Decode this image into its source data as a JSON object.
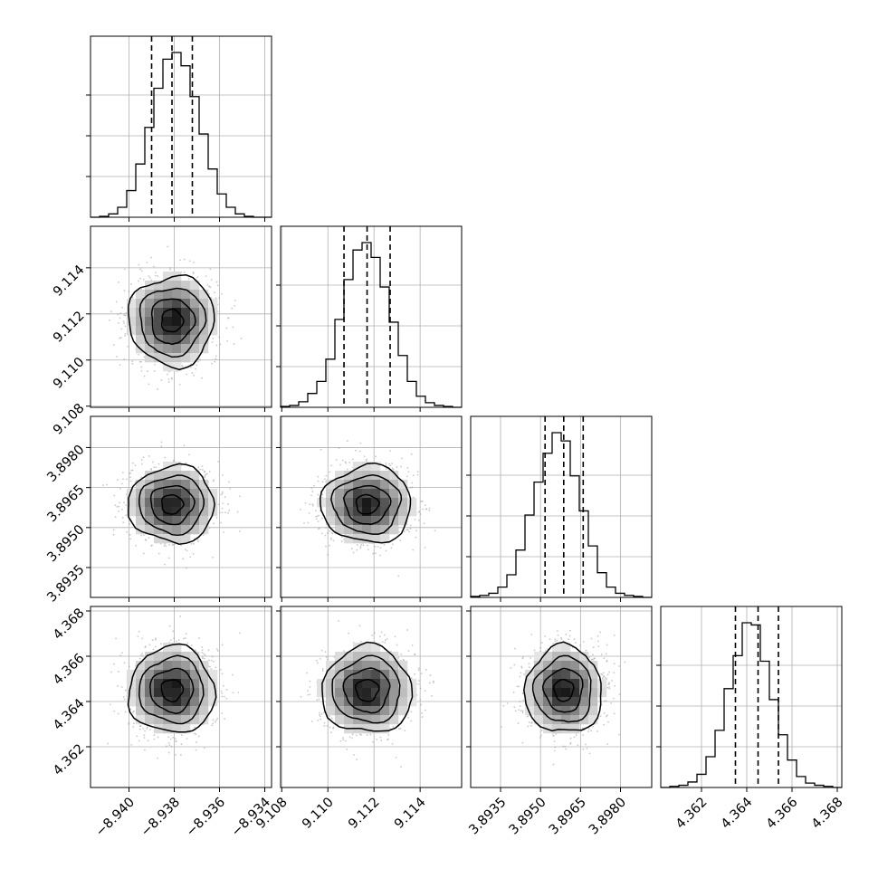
{
  "chart_data": {
    "type": "corner",
    "title": "",
    "parameters": [
      {
        "index": 0,
        "range": [
          -8.9417,
          -8.9337
        ],
        "ticks": [
          -8.94,
          -8.938,
          -8.936,
          -8.934
        ],
        "tick_labels": [
          "−8.940",
          "−8.938",
          "−8.936",
          "−8.934"
        ],
        "mean": -8.9381,
        "std": 0.00095,
        "quantiles": [
          -8.939,
          -8.9381,
          -8.9372
        ]
      },
      {
        "index": 1,
        "range": [
          9.10795,
          9.1158
        ],
        "ticks": [
          9.108,
          9.11,
          9.112,
          9.114
        ],
        "tick_labels": [
          "9.108",
          "9.110",
          "9.112",
          "9.114"
        ],
        "mean": 9.1117,
        "std": 0.00098,
        "quantiles": [
          9.1107,
          9.1117,
          9.1127
        ]
      },
      {
        "index": 2,
        "range": [
          3.89238,
          3.89917
        ],
        "ticks": [
          3.8935,
          3.895,
          3.8965,
          3.898
        ],
        "tick_labels": [
          "3.8935",
          "3.8950",
          "3.8965",
          "3.8980"
        ],
        "mean": 3.89587,
        "std": 0.00072,
        "quantiles": [
          3.89517,
          3.89587,
          3.8966
        ]
      },
      {
        "index": 3,
        "range": [
          4.3602,
          4.3682
        ],
        "ticks": [
          4.362,
          4.364,
          4.366,
          4.368
        ],
        "tick_labels": [
          "4.362",
          "4.364",
          "4.366",
          "4.368"
        ],
        "mean": 4.3645,
        "std": 0.00096,
        "quantiles": [
          4.3635,
          4.3645,
          4.3654
        ]
      }
    ],
    "histogram_bins": 20,
    "histograms": [
      [
        0,
        1,
        4,
        12,
        32,
        64,
        108,
        155,
        190,
        198,
        182,
        145,
        100,
        58,
        28,
        12,
        4,
        1,
        0,
        0
      ],
      [
        1,
        2,
        6,
        15,
        28,
        52,
        95,
        138,
        170,
        178,
        162,
        130,
        92,
        56,
        28,
        12,
        5,
        2,
        1,
        0
      ],
      [
        1,
        2,
        4,
        10,
        22,
        46,
        80,
        112,
        140,
        160,
        152,
        118,
        84,
        50,
        24,
        10,
        4,
        2,
        1,
        0
      ],
      [
        0,
        1,
        2,
        5,
        12,
        28,
        52,
        90,
        120,
        150,
        148,
        115,
        80,
        48,
        25,
        10,
        4,
        2,
        1,
        0
      ]
    ],
    "contour_levels": [
      "0.5-sigma",
      "1-sigma",
      "1.5-sigma",
      "2-sigma"
    ],
    "quantile_lines": [
      0.16,
      0.5,
      0.84
    ],
    "grid": true,
    "colors": {
      "line": "#000000",
      "grid": "#b0b0b0",
      "scatter": "#9a9a9a",
      "background": "#ffffff"
    }
  }
}
